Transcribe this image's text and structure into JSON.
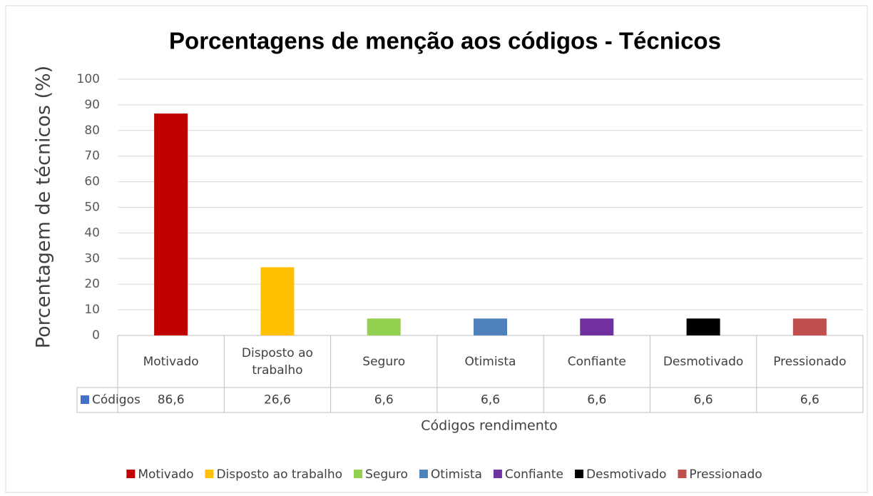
{
  "chart_data": {
    "type": "bar",
    "title": "Porcentagens de menção aos códigos - Técnicos",
    "y_label": "Porcentagem de técnicos (%)",
    "x_label": "Códigos rendimento",
    "categories": [
      "Motivado",
      "Disposto ao trabalho",
      "Seguro",
      "Otimista",
      "Confiante",
      "Desmotivado",
      "Pressionado"
    ],
    "colors": [
      "#c00000",
      "#ffc000",
      "#92d050",
      "#4f81bd",
      "#7030a0",
      "#000000",
      "#c0504d"
    ],
    "series": [
      {
        "name": "Códigos",
        "color": "#4472c4",
        "values": [
          86.6,
          26.6,
          6.6,
          6.6,
          6.6,
          6.6,
          6.6
        ],
        "value_labels": [
          "86,6",
          "26,6",
          "6,6",
          "6,6",
          "6,6",
          "6,6",
          "6,6"
        ]
      }
    ],
    "ylim": [
      0,
      100
    ],
    "yticks": [
      0,
      10,
      20,
      30,
      40,
      50,
      60,
      70,
      80,
      90,
      100
    ],
    "grid": true,
    "legend": "bottom"
  }
}
